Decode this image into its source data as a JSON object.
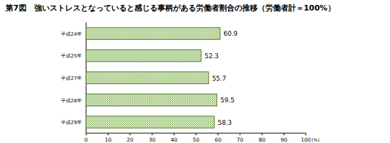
{
  "chart_data": {
    "type": "bar",
    "orientation": "horizontal",
    "title": "第7図　強いストレスとなっていると感じる事柄がある労働者割合の推移（労働者計＝100%）",
    "x_label": "(%)",
    "categories": [
      "平成24年",
      "平成25年",
      "平成27年",
      "平成28年",
      "平成29年"
    ],
    "values": [
      60.9,
      52.3,
      55.7,
      59.5,
      58.3
    ],
    "color": "#d6eabf",
    "xlim": [
      0,
      100
    ],
    "xticks": [
      0,
      10,
      20,
      30,
      40,
      50,
      60,
      70,
      80,
      90,
      100
    ],
    "grid": false,
    "data_labels": true
  }
}
